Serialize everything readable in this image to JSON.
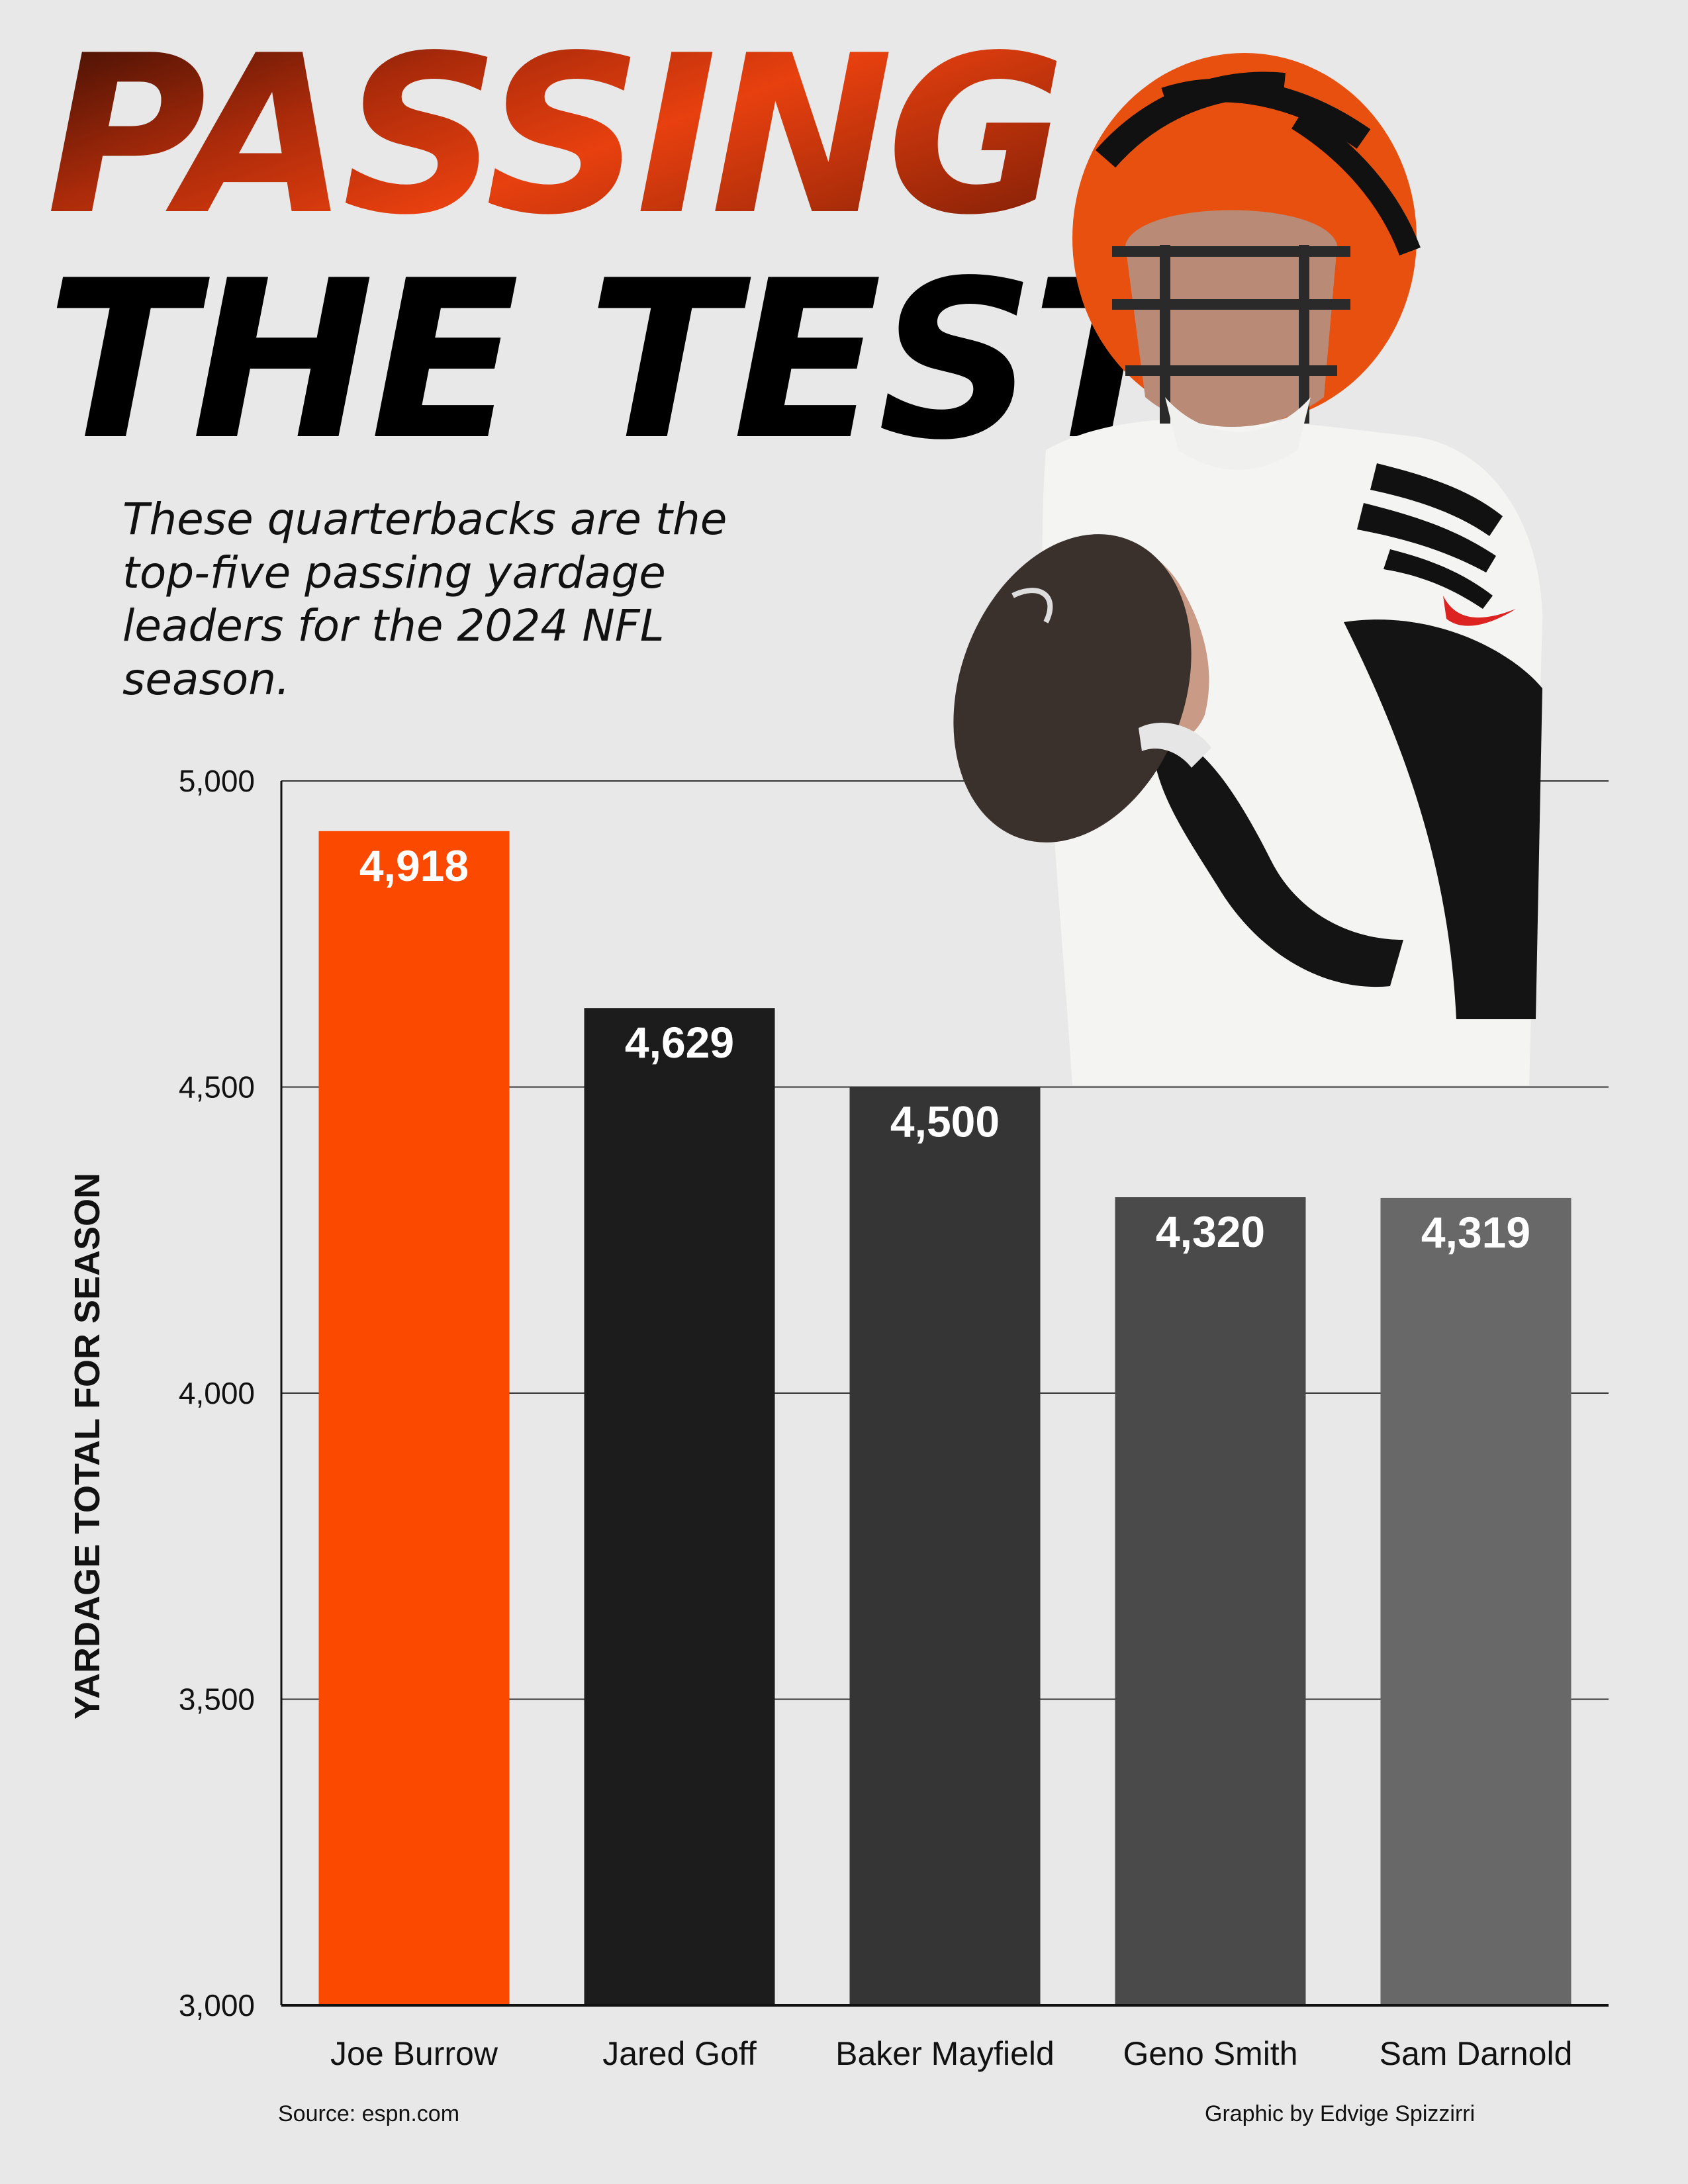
{
  "header": {
    "title_line1": "PASSING",
    "title_line2": "THE TEST",
    "subtitle": "These quarterbacks are the top-five passing yardage leaders for the 2024 NFL season."
  },
  "footer": {
    "source": "Source: espn.com",
    "credit": "Graphic by Edvige Spizzirri"
  },
  "colors": {
    "accent": "#fb4a00",
    "bar_dark1": "#1c1c1c",
    "bar_dark2": "#353535",
    "bar_dark3": "#4a4a4a",
    "bar_dark4": "#686868"
  },
  "chart_data": {
    "type": "bar",
    "title": "PASSING THE TEST",
    "categories": [
      "Joe Burrow",
      "Jared Goff",
      "Baker Mayfield",
      "Geno Smith",
      "Sam Darnold"
    ],
    "values": [
      4918,
      4629,
      4500,
      4320,
      4319
    ],
    "value_labels": [
      "4,918",
      "4,629",
      "4,500",
      "4,320",
      "4,319"
    ],
    "bar_colors": [
      "#fb4a00",
      "#1c1c1c",
      "#353535",
      "#4a4a4a",
      "#686868"
    ],
    "ylabel": "YARDAGE TOTAL FOR SEASON",
    "xlabel": "",
    "ylim": [
      3000,
      5000
    ],
    "yticks": [
      3000,
      3500,
      4000,
      4500,
      5000
    ],
    "ytick_labels": [
      "3,000",
      "3,500",
      "4,000",
      "4,500",
      "5,000"
    ],
    "grid": true
  }
}
